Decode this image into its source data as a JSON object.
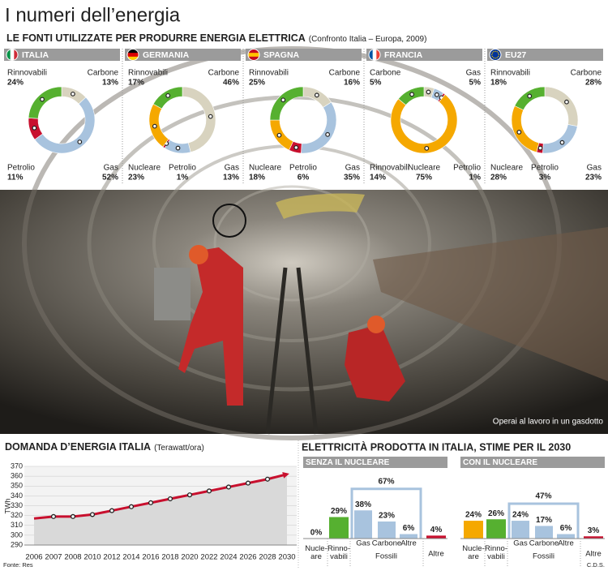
{
  "title": "I numeri dell’energia",
  "section_sources": {
    "title": "LE FONTI UTILIZZATE PER PRODURRE ENERGIA ELETTRICA",
    "subtitle": "(Confronto Italia – Europa, 2009)"
  },
  "photo_caption": "Operai al lavoro in un gasdotto",
  "section_forecast": {
    "title": "ELETTRICITÀ PRODOTTA IN ITALIA, STIME PER IL 2030"
  },
  "source": "Fonte: Res",
  "credit": "C.D.S.",
  "chart_data": [
    {
      "type": "pie",
      "title": "ITALIA",
      "categories": [
        "Carbone",
        "Gas",
        "Petrolio",
        "Rinnovabili"
      ],
      "values": [
        13,
        52,
        11,
        24
      ],
      "value_labels": [
        "13%",
        "52%",
        "11%",
        "24%"
      ],
      "colors": [
        "#d8d3bf",
        "#a8c3de",
        "#c8102e",
        "#56b030"
      ]
    },
    {
      "type": "pie",
      "title": "GERMANIA",
      "categories": [
        "Carbone",
        "Gas",
        "Petrolio",
        "Nucleare",
        "Rinnovabili"
      ],
      "values": [
        46,
        13,
        1,
        23,
        17
      ],
      "value_labels": [
        "46%",
        "13%",
        "1%",
        "23%",
        "17%"
      ],
      "colors": [
        "#d8d3bf",
        "#a8c3de",
        "#c8102e",
        "#f5a800",
        "#56b030"
      ]
    },
    {
      "type": "pie",
      "title": "SPAGNA",
      "categories": [
        "Carbone",
        "Gas",
        "Petrolio",
        "Nucleare",
        "Rinnovabili"
      ],
      "values": [
        16,
        35,
        6,
        18,
        25
      ],
      "value_labels": [
        "16%",
        "35%",
        "6%",
        "18%",
        "25%"
      ],
      "colors": [
        "#d8d3bf",
        "#a8c3de",
        "#c8102e",
        "#f5a800",
        "#56b030"
      ]
    },
    {
      "type": "pie",
      "title": "FRANCIA",
      "categories": [
        "Carbone",
        "Gas",
        "Petrolio",
        "Nucleare",
        "Rinnovabili"
      ],
      "values": [
        5,
        5,
        1,
        75,
        14
      ],
      "value_labels": [
        "5%",
        "5%",
        "1%",
        "75%",
        "14%"
      ],
      "colors": [
        "#d8d3bf",
        "#a8c3de",
        "#c8102e",
        "#f5a800",
        "#56b030"
      ]
    },
    {
      "type": "pie",
      "title": "EU27",
      "categories": [
        "Carbone",
        "Gas",
        "Petrolio",
        "Nucleare",
        "Rinnovabili"
      ],
      "values": [
        28,
        23,
        3,
        28,
        18
      ],
      "value_labels": [
        "28%",
        "23%",
        "3%",
        "28%",
        "18%"
      ],
      "colors": [
        "#d8d3bf",
        "#a8c3de",
        "#c8102e",
        "#f5a800",
        "#56b030"
      ]
    },
    {
      "type": "area",
      "title": "DOMANDA D’ENERGIA ITALIA",
      "subtitle": "(Terawatt/ora)",
      "y_label": "TWh",
      "categories": [
        "2006",
        "2007",
        "2008",
        "2010",
        "2012",
        "2014",
        "2016",
        "2018",
        "2020",
        "2022",
        "2024",
        "2026",
        "2028",
        "2030"
      ],
      "values": [
        317,
        319,
        319,
        321,
        325,
        329,
        333,
        337,
        341,
        345,
        349,
        353,
        357,
        362
      ],
      "color": "#c8102e",
      "fill": "#d9d9d9",
      "ylim": [
        290,
        370
      ],
      "yticks": [
        290,
        300,
        310,
        320,
        330,
        340,
        350,
        360,
        370
      ],
      "grid": true
    },
    {
      "type": "bar",
      "title": "SENZA IL NUCLEARE",
      "categories": [
        "Nucle-\nare",
        "Rinno-\nvabili",
        "Gas",
        "Carbone",
        "Altre",
        "Altre"
      ],
      "values": [
        0,
        29,
        38,
        23,
        6,
        4
      ],
      "value_labels": [
        "0%",
        "29%",
        "38%",
        "23%",
        "6%",
        "4%"
      ],
      "colors": [
        "#f5a800",
        "#56b030",
        "#a8c3de",
        "#a8c3de",
        "#a8c3de",
        "#c8102e"
      ],
      "group": {
        "label": "Fossili",
        "value": 67,
        "value_label": "67%"
      },
      "ylim": [
        0,
        70
      ]
    },
    {
      "type": "bar",
      "title": "CON IL NUCLEARE",
      "categories": [
        "Nucle-\nare",
        "Rinno-\nvabili",
        "Gas",
        "Carbone",
        "Altre",
        "Altre"
      ],
      "values": [
        24,
        26,
        24,
        17,
        6,
        3
      ],
      "value_labels": [
        "24%",
        "26%",
        "24%",
        "17%",
        "6%",
        "3%"
      ],
      "colors": [
        "#f5a800",
        "#56b030",
        "#a8c3de",
        "#a8c3de",
        "#a8c3de",
        "#c8102e"
      ],
      "group": {
        "label": "Fossili",
        "value": 47,
        "value_label": "47%"
      },
      "ylim": [
        0,
        70
      ]
    }
  ]
}
